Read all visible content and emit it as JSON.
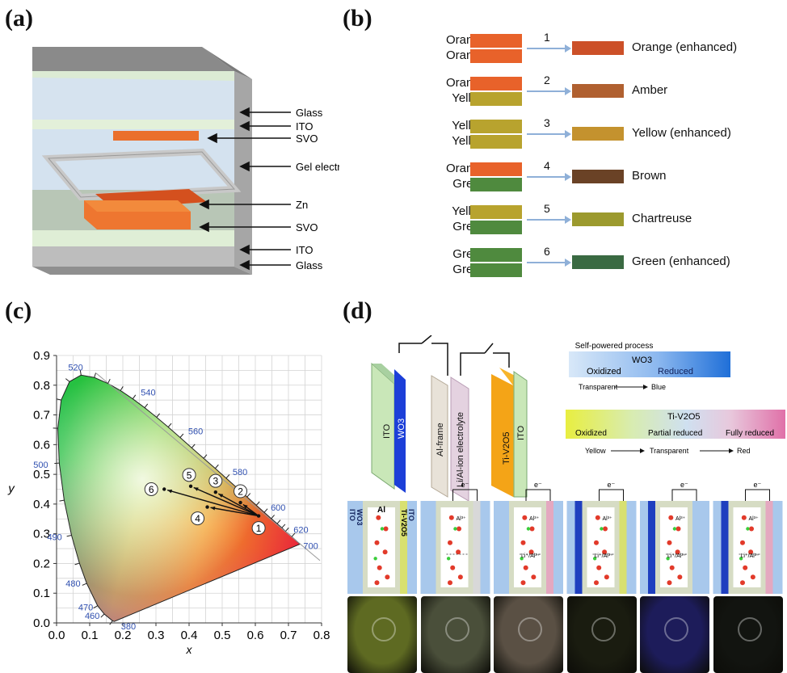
{
  "panels": {
    "a": "(a)",
    "b": "(b)",
    "c": "(c)",
    "d": "(d)"
  },
  "a": {
    "layers": [
      "Glass",
      "ITO",
      "SVO",
      "Gel electrolyte",
      "Zn",
      "SVO",
      "ITO",
      "Glass"
    ]
  },
  "b": {
    "combos": [
      {
        "top": "Orange",
        "bottom": "Orange",
        "num": "1",
        "result": "Orange (enhanced)",
        "top_color": "#e8622a",
        "bottom_color": "#e8622a",
        "result_color": "#cc5028"
      },
      {
        "top": "Orange",
        "bottom": "Yellow",
        "num": "2",
        "result": "Amber",
        "top_color": "#e8622a",
        "bottom_color": "#b8a32e",
        "result_color": "#b06030"
      },
      {
        "top": "Yellow",
        "bottom": "Yellow",
        "num": "3",
        "result": "Yellow (enhanced)",
        "top_color": "#b8a32e",
        "bottom_color": "#b8a32e",
        "result_color": "#c4922e"
      },
      {
        "top": "Orange",
        "bottom": "Green",
        "num": "4",
        "result": "Brown",
        "top_color": "#e8622a",
        "bottom_color": "#4f8a3e",
        "result_color": "#6a4226"
      },
      {
        "top": "Yellow",
        "bottom": "Green",
        "num": "5",
        "result": "Chartreuse",
        "top_color": "#b8a32e",
        "bottom_color": "#4f8a3e",
        "result_color": "#9c9a2e"
      },
      {
        "top": "Green",
        "bottom": "Green",
        "num": "6",
        "result": "Green (enhanced)",
        "top_color": "#4f8a3e",
        "bottom_color": "#4f8a3e",
        "result_color": "#3a6a42"
      }
    ]
  },
  "chart_data": {
    "type": "scatter",
    "xlabel": "x",
    "ylabel": "y",
    "xlim": [
      0.0,
      0.8
    ],
    "ylim": [
      0.0,
      0.9
    ],
    "xticks": [
      "0.0",
      "0.1",
      "0.2",
      "0.3",
      "0.4",
      "0.5",
      "0.6",
      "0.7",
      "0.8"
    ],
    "yticks": [
      "0.0",
      "0.1",
      "0.2",
      "0.3",
      "0.4",
      "0.5",
      "0.6",
      "0.7",
      "0.8",
      "0.9"
    ],
    "grid": true,
    "wavelength_labels": [
      {
        "label": "380",
        "x": 0.175,
        "y": 0.005
      },
      {
        "label": "460",
        "x": 0.144,
        "y": 0.03
      },
      {
        "label": "470",
        "x": 0.124,
        "y": 0.058
      },
      {
        "label": "480",
        "x": 0.091,
        "y": 0.133
      },
      {
        "label": "490",
        "x": 0.045,
        "y": 0.295
      },
      {
        "label": "500",
        "x": 0.008,
        "y": 0.538
      },
      {
        "label": "520",
        "x": 0.074,
        "y": 0.834
      },
      {
        "label": "540",
        "x": 0.23,
        "y": 0.754
      },
      {
        "label": "560",
        "x": 0.373,
        "y": 0.624
      },
      {
        "label": "580",
        "x": 0.512,
        "y": 0.487
      },
      {
        "label": "600",
        "x": 0.627,
        "y": 0.372
      },
      {
        "label": "620",
        "x": 0.691,
        "y": 0.308
      },
      {
        "label": "700",
        "x": 0.735,
        "y": 0.265
      }
    ],
    "points": [
      {
        "label": "1",
        "x": 0.61,
        "y": 0.36
      },
      {
        "label": "2",
        "x": 0.555,
        "y": 0.405
      },
      {
        "label": "3",
        "x": 0.48,
        "y": 0.44
      },
      {
        "label": "4",
        "x": 0.455,
        "y": 0.39
      },
      {
        "label": "5",
        "x": 0.405,
        "y": 0.46
      },
      {
        "label": "6",
        "x": 0.325,
        "y": 0.45
      }
    ]
  },
  "d": {
    "device_labels": [
      "ITO",
      "WO3",
      "Al-frame",
      "Li/Al-ion electrolyte",
      "Ti-V2O5",
      "ITO"
    ],
    "wo3_bar": {
      "title": "Self-powered process",
      "name": "WO3",
      "left": "Oxidized",
      "right": "Reduced",
      "caption_left": "Transparent",
      "caption_right": "Blue"
    },
    "tiv_bar": {
      "name": "Ti-V2O5",
      "left": "Oxidized",
      "mid": "Partial reduced",
      "right": "Fully reduced",
      "caption_left": "Yellow",
      "caption_mid": "Transparent",
      "caption_right": "Red"
    },
    "cell_labels": {
      "ito": "ITO",
      "wo3": "WO3",
      "al": "Al",
      "tiv": "Ti-V2O5",
      "electron": "e⁻",
      "al_ion": "Al³⁺",
      "li_al": "Li⁺/Al³⁺"
    },
    "cell_right_colors": [
      "#d8e070",
      "#d8d8d8",
      "#e4a8c0",
      "#d8e070",
      "#a8c8ec",
      "#e4a8c0"
    ],
    "cell_left_colors": [
      "#a8c8ec",
      "#a8c8ec",
      "#a8c8ec",
      "#1f3fbf",
      "#1f3fbf",
      "#1f3fbf"
    ],
    "photo_colors": [
      "#5e6a22",
      "#4a4f3a",
      "#5a5044",
      "#1a1c10",
      "#1d1c5a",
      "#121410"
    ]
  }
}
